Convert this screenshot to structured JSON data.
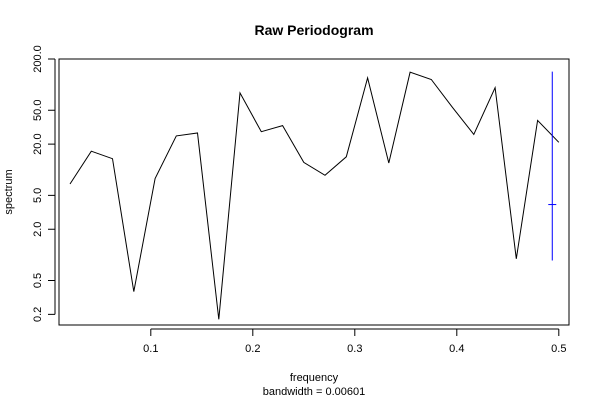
{
  "chart_data": {
    "type": "line",
    "title": "Raw Periodogram",
    "xlabel": "frequency",
    "subtitle": "bandwidth = 0.00601",
    "ylabel": "spectrum",
    "y_scale": "log",
    "xlim": [
      0.01,
      0.51
    ],
    "ylim": [
      0.15,
      200
    ],
    "x_ticks": [
      0.1,
      0.2,
      0.3,
      0.4,
      0.5
    ],
    "x_tick_labels": [
      "0.1",
      "0.2",
      "0.3",
      "0.4",
      "0.5"
    ],
    "y_ticks": [
      0.2,
      0.5,
      2,
      5,
      20,
      50,
      200
    ],
    "y_tick_labels": [
      "0.2",
      "0.5",
      "2.0",
      "5.0",
      "20.0",
      "50.0",
      "200.0"
    ],
    "grid": false,
    "series": [
      {
        "color": "#000000",
        "x": [
          0.0208,
          0.0417,
          0.0625,
          0.0833,
          0.1042,
          0.125,
          0.1458,
          0.1667,
          0.1875,
          0.2083,
          0.2292,
          0.25,
          0.2708,
          0.2917,
          0.3125,
          0.3333,
          0.3542,
          0.375,
          0.3958,
          0.4167,
          0.4375,
          0.4583,
          0.4792,
          0.5
        ],
        "y": [
          6.8,
          16.5,
          13.5,
          0.37,
          7.9,
          25,
          27,
          0.175,
          80,
          28,
          33,
          12.2,
          8.6,
          14.2,
          120,
          12,
          140,
          115,
          54,
          26,
          92,
          0.9,
          38,
          21
        ]
      }
    ],
    "ci_bar": {
      "color": "#0000ff",
      "x": 0.4936,
      "lower": 0.86,
      "center": 3.9,
      "upper": 142
    }
  }
}
